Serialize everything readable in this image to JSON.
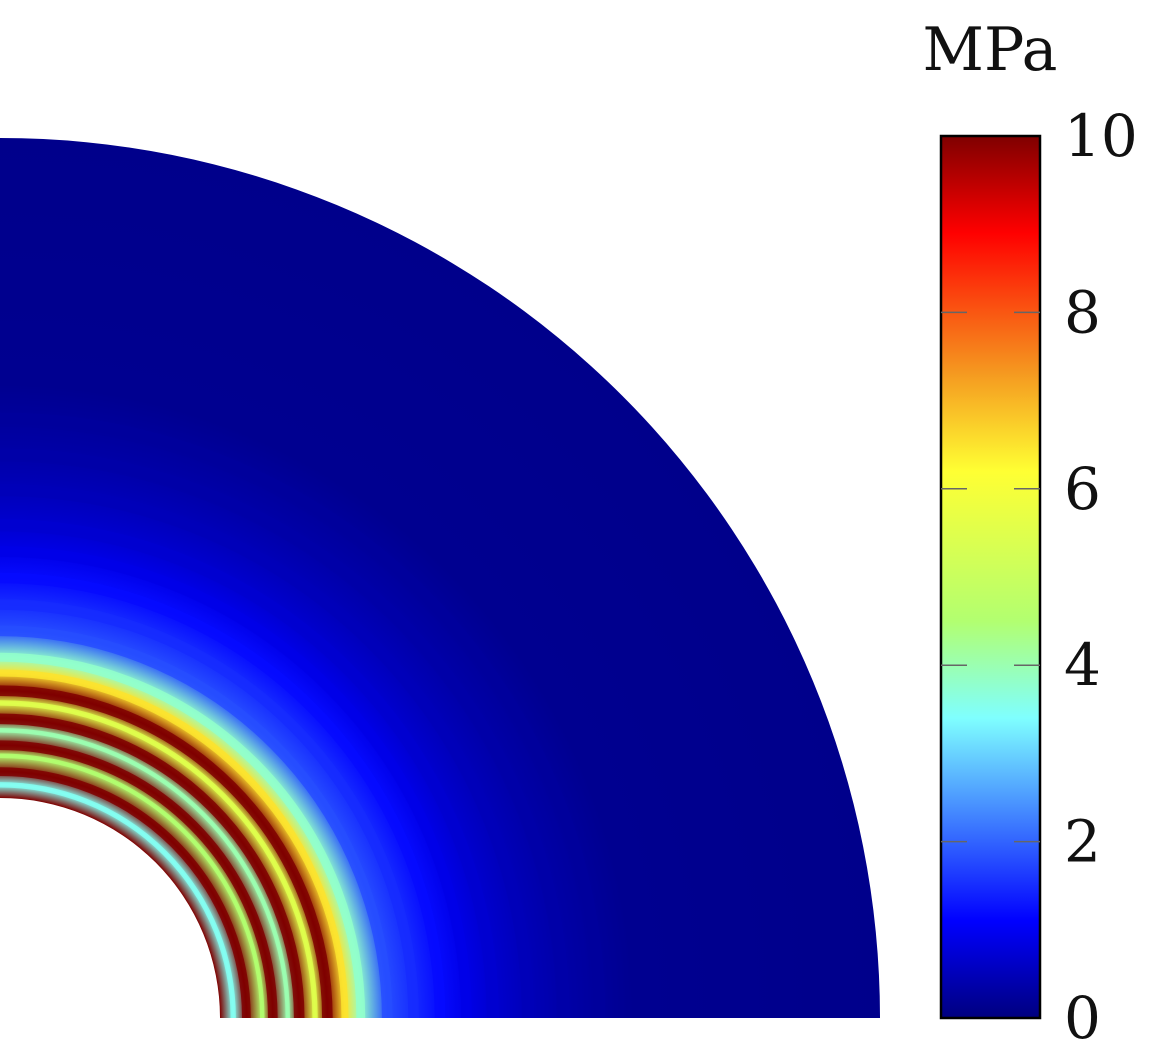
{
  "chart_data": {
    "type": "heatmap",
    "title": "",
    "geometry": "quarter-annulus",
    "field": "pressure amplitude map in a quarter annulus (wave fronts radiating outward from inner boundary)",
    "colormap": "jet",
    "colorbar": {
      "unit": "MPa",
      "min": 0,
      "max": 10,
      "ticks": [
        0,
        2,
        4,
        6,
        8,
        10
      ],
      "tick_labels": [
        "0",
        "2",
        "4",
        "6",
        "8",
        "10"
      ],
      "placement": "right"
    },
    "inner_radius_fraction": 0.25,
    "bands": [
      {
        "r": 0.265,
        "width": 0.006,
        "value": 3.5
      },
      {
        "r": 0.28,
        "width": 0.01,
        "value": 10
      },
      {
        "r": 0.298,
        "width": 0.005,
        "value": 4.5
      },
      {
        "r": 0.31,
        "width": 0.011,
        "value": 10
      },
      {
        "r": 0.327,
        "width": 0.005,
        "value": 4
      },
      {
        "r": 0.34,
        "width": 0.012,
        "value": 10
      },
      {
        "r": 0.358,
        "width": 0.006,
        "value": 5.5
      },
      {
        "r": 0.372,
        "width": 0.012,
        "value": 10
      },
      {
        "r": 0.392,
        "width": 0.008,
        "value": 6.5
      },
      {
        "r": 0.41,
        "width": 0.01,
        "value": 3.8
      },
      {
        "r": 0.44,
        "width": 0.012,
        "value": 1.8
      },
      {
        "r": 0.47,
        "width": 0.012,
        "value": 1.5
      },
      {
        "r": 0.5,
        "width": 0.012,
        "value": 1.2
      },
      {
        "r": 0.53,
        "width": 0.012,
        "value": 0.9
      },
      {
        "r": 0.56,
        "width": 0.014,
        "value": 0.7
      },
      {
        "r": 0.6,
        "width": 0.014,
        "value": 0.5
      },
      {
        "r": 0.64,
        "width": 0.015,
        "value": 0.35
      },
      {
        "r": 0.68,
        "width": 0.016,
        "value": 0.25
      }
    ]
  }
}
